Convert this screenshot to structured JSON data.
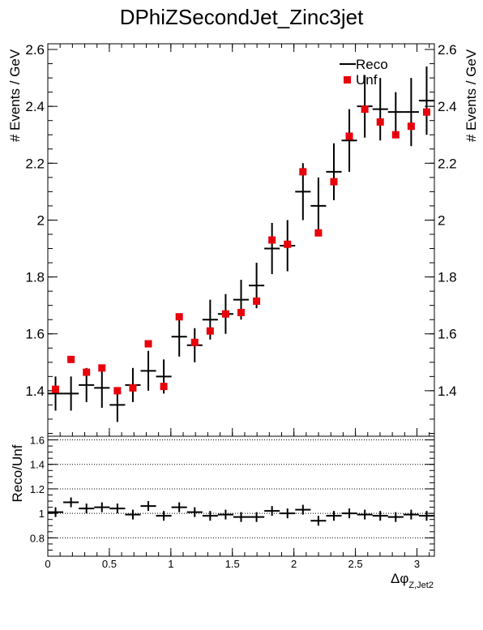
{
  "chart_data": [
    {
      "type": "scatter",
      "title": "DPhiZSecondJet_Zinc3jet",
      "ylabel": "# Events / GeV",
      "ylim": [
        1.24,
        2.62
      ],
      "xlim": [
        0,
        3.1416
      ],
      "yticks": [
        1.4,
        1.6,
        1.8,
        2,
        2.2,
        2.4,
        2.6
      ],
      "ytick_labels": [
        "1.4",
        "1.6",
        "1.8",
        "2",
        "2.2",
        "2.4",
        "2.6"
      ],
      "legend_position": "top-right",
      "legend": [
        {
          "label": "Reco",
          "marker": "cross",
          "color": "#000000"
        },
        {
          "label": "Unf",
          "marker": "square",
          "color": "#e8000b"
        }
      ],
      "bin_width": 0.1257,
      "series": [
        {
          "name": "Reco",
          "x": [
            0.0628,
            0.1885,
            0.3142,
            0.4398,
            0.5655,
            0.6912,
            0.8168,
            0.9425,
            1.0681,
            1.1938,
            1.3195,
            1.4451,
            1.5708,
            1.6965,
            1.8221,
            1.9478,
            2.0735,
            2.1991,
            2.3248,
            2.4504,
            2.5761,
            2.7018,
            2.8274,
            2.9531,
            3.0788
          ],
          "y": [
            1.39,
            1.39,
            1.42,
            1.41,
            1.35,
            1.42,
            1.47,
            1.45,
            1.59,
            1.56,
            1.65,
            1.67,
            1.72,
            1.77,
            1.9,
            1.91,
            2.1,
            2.05,
            2.17,
            2.28,
            2.4,
            2.39,
            2.38,
            2.38,
            2.42
          ],
          "yerr": [
            0.06,
            0.06,
            0.06,
            0.07,
            0.06,
            0.06,
            0.07,
            0.06,
            0.07,
            0.06,
            0.07,
            0.07,
            0.07,
            0.08,
            0.09,
            0.09,
            0.1,
            0.1,
            0.1,
            0.11,
            0.11,
            0.11,
            0.07,
            0.12,
            0.12
          ]
        },
        {
          "name": "Unf",
          "x": [
            0.0628,
            0.1885,
            0.3142,
            0.4398,
            0.5655,
            0.6912,
            0.8168,
            0.9425,
            1.0681,
            1.1938,
            1.3195,
            1.4451,
            1.5708,
            1.6965,
            1.8221,
            1.9478,
            2.0735,
            2.1991,
            2.3248,
            2.4504,
            2.5761,
            2.7018,
            2.8274,
            2.9531,
            3.0788
          ],
          "y": [
            1.405,
            1.51,
            1.465,
            1.48,
            1.4,
            1.41,
            1.565,
            1.415,
            1.66,
            1.57,
            1.61,
            1.67,
            1.675,
            1.715,
            1.93,
            1.915,
            2.17,
            1.955,
            2.135,
            2.295,
            2.39,
            2.345,
            2.3,
            2.33,
            2.38
          ]
        }
      ]
    },
    {
      "type": "scatter",
      "ylabel": "Reco/Unf",
      "xlabel_main": "Δφ",
      "xlabel_sub": "Z,Jet2",
      "ylim": [
        0.65,
        1.63
      ],
      "xlim": [
        0,
        3.1416
      ],
      "yticks": [
        0.8,
        1,
        1.2,
        1.4,
        1.6
      ],
      "ytick_labels": [
        "0.8",
        "1",
        "1.2",
        "1.4",
        "1.6"
      ],
      "xticks": [
        0,
        0.5,
        1,
        1.5,
        2,
        2.5,
        3
      ],
      "xtick_labels": [
        "0",
        "0.5",
        "1",
        "1.5",
        "2",
        "2.5",
        "3"
      ],
      "grid_y": [
        0.8,
        1,
        1.2,
        1.4,
        1.6
      ],
      "bin_width": 0.1257,
      "series": [
        {
          "x": [
            0.0628,
            0.1885,
            0.3142,
            0.4398,
            0.5655,
            0.6912,
            0.8168,
            0.9425,
            1.0681,
            1.1938,
            1.3195,
            1.4451,
            1.5708,
            1.6965,
            1.8221,
            1.9478,
            2.0735,
            2.1991,
            2.3248,
            2.4504,
            2.5761,
            2.7018,
            2.8274,
            2.9531,
            3.0788
          ],
          "y": [
            1.01,
            1.09,
            1.04,
            1.05,
            1.04,
            0.99,
            1.06,
            0.98,
            1.05,
            1.01,
            0.98,
            0.99,
            0.97,
            0.97,
            1.02,
            1.0,
            1.03,
            0.94,
            0.98,
            1.0,
            0.99,
            0.98,
            0.97,
            0.99,
            0.98
          ],
          "yerr": [
            0.04,
            0.04,
            0.04,
            0.04,
            0.04,
            0.04,
            0.04,
            0.04,
            0.04,
            0.04,
            0.04,
            0.04,
            0.04,
            0.04,
            0.04,
            0.04,
            0.04,
            0.04,
            0.04,
            0.04,
            0.04,
            0.04,
            0.04,
            0.04,
            0.04
          ]
        }
      ]
    }
  ]
}
